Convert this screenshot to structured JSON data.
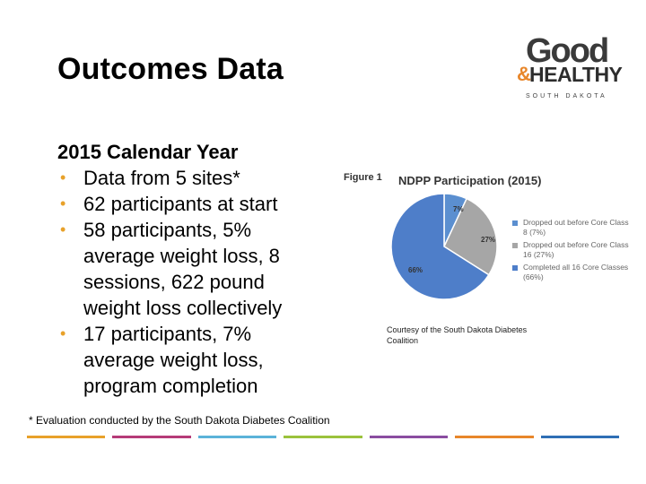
{
  "slide": {
    "title": "Outcomes Data",
    "heading": "2015 Calendar Year",
    "bullets": [
      "Data from 5 sites*",
      "62 participants at start",
      "58 participants, 5% average weight loss, 8 sessions, 622 pound weight loss collectively",
      "17 participants, 7% average weight loss, program completion"
    ],
    "courtesy": "Courtesy of the South Dakota Diabetes Coalition",
    "footnote": "* Evaluation conducted by the South Dakota Diabetes Coalition"
  },
  "logo": {
    "line1": "Good",
    "amp": "&",
    "line2": "HEALTHY",
    "line3": "SOUTH DAKOTA"
  },
  "chart_data": {
    "type": "pie",
    "figure_label": "Figure 1",
    "title": "NDPP Participation (2015)",
    "slices": [
      {
        "label": "Dropped out before Core Class 8 (7%)",
        "value": 7,
        "text": "7%",
        "color": "#5b8fd0"
      },
      {
        "label": "Dropped out before Core Class 16 (27%)",
        "value": 27,
        "text": "27%",
        "color": "#a6a6a6"
      },
      {
        "label": "Completed all 16 Core Classes (66%)",
        "value": 66,
        "text": "66%",
        "color": "#4e7ec9"
      }
    ],
    "legend_position": "right"
  },
  "colors": {
    "bullet": "#e8a12a",
    "stripes": [
      "#e8a12a",
      "#b63b78",
      "#5bb3d9",
      "#9bc23c",
      "#8a4da0",
      "#e8862a",
      "#2f6fb5"
    ]
  }
}
